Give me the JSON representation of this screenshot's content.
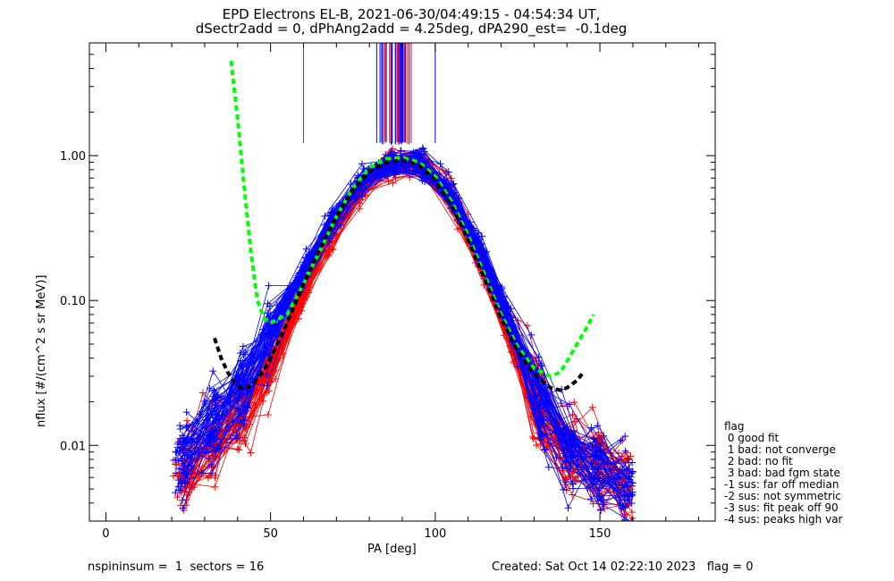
{
  "chart_data": {
    "type": "line",
    "title_line1": "EPD Electrons EL-B, 2021-06-30/04:49:15 - 04:54:34 UT,",
    "title_line2": "dSectr2add = 0, dPhAng2add = 4.25deg, dPA290_est=  -0.1deg",
    "xlabel": "PA [deg]",
    "ylabel": "nflux [#/(cm^2 s sr MeV)]",
    "xlim": [
      -5,
      185
    ],
    "ylim": [
      0.003,
      6
    ],
    "yscale": "log",
    "x_ticks": [
      0,
      50,
      100,
      150
    ],
    "x_tick_labels": [
      "0",
      "50",
      "100",
      "150"
    ],
    "y_ticks": [
      0.01,
      0.1,
      1.0
    ],
    "y_tick_labels": [
      "0.01",
      "0.10",
      "1.00"
    ],
    "series": [
      {
        "color": "#ff0000",
        "style": "line+cross",
        "profile_x": [
          22,
          30,
          35,
          40,
          45,
          50,
          55,
          60,
          65,
          70,
          75,
          80,
          85,
          90,
          95,
          100,
          105,
          110,
          115,
          120,
          125,
          130,
          135,
          140,
          145,
          150,
          155,
          160
        ],
        "profile_y": [
          0.006,
          0.009,
          0.011,
          0.014,
          0.02,
          0.035,
          0.06,
          0.11,
          0.2,
          0.33,
          0.5,
          0.7,
          0.85,
          0.92,
          0.88,
          0.72,
          0.5,
          0.3,
          0.16,
          0.08,
          0.04,
          0.02,
          0.012,
          0.009,
          0.008,
          0.007,
          0.006,
          0.005
        ]
      },
      {
        "color": "#0000ff",
        "style": "line+cross",
        "profile_x": [
          22,
          30,
          35,
          40,
          45,
          50,
          55,
          60,
          65,
          70,
          75,
          80,
          85,
          90,
          95,
          100,
          105,
          110,
          115,
          120,
          125,
          130,
          135,
          140,
          145,
          150,
          155,
          160
        ],
        "profile_y": [
          0.008,
          0.012,
          0.016,
          0.022,
          0.035,
          0.06,
          0.1,
          0.16,
          0.26,
          0.4,
          0.58,
          0.76,
          0.87,
          0.93,
          0.88,
          0.74,
          0.54,
          0.34,
          0.19,
          0.1,
          0.05,
          0.025,
          0.015,
          0.01,
          0.008,
          0.007,
          0.006,
          0.005
        ]
      },
      {
        "color": "#00ff00",
        "style": "dashed-fit",
        "x": [
          38,
          40,
          42,
          44,
          46,
          48,
          50,
          55,
          60,
          65,
          70,
          75,
          80,
          85,
          90,
          95,
          100,
          105,
          110,
          115,
          120,
          125,
          130,
          135,
          138,
          140,
          143,
          146,
          148
        ],
        "y": [
          4.5,
          1.8,
          0.6,
          0.22,
          0.1,
          0.075,
          0.07,
          0.08,
          0.13,
          0.22,
          0.38,
          0.6,
          0.82,
          0.95,
          0.97,
          0.9,
          0.72,
          0.48,
          0.28,
          0.15,
          0.08,
          0.048,
          0.034,
          0.03,
          0.032,
          0.038,
          0.05,
          0.065,
          0.08
        ]
      },
      {
        "color": "#000000",
        "style": "dashed-fit",
        "x": [
          33,
          35,
          37,
          39,
          41,
          43,
          45,
          48,
          50,
          55,
          60,
          65,
          70,
          75,
          80,
          85,
          90,
          95,
          100,
          105,
          110,
          115,
          120,
          125,
          130,
          135,
          138,
          140,
          143,
          145
        ],
        "y": [
          0.055,
          0.04,
          0.032,
          0.027,
          0.025,
          0.025,
          0.027,
          0.033,
          0.04,
          0.07,
          0.13,
          0.23,
          0.38,
          0.58,
          0.78,
          0.9,
          0.93,
          0.86,
          0.68,
          0.45,
          0.26,
          0.14,
          0.075,
          0.045,
          0.031,
          0.025,
          0.024,
          0.025,
          0.028,
          0.032
        ]
      }
    ],
    "pa_marker_lines": {
      "colors": [
        "#ff0000",
        "#0000ff"
      ],
      "x_range": [
        82,
        93
      ],
      "outliers_x": [
        60,
        100
      ]
    }
  },
  "legend": {
    "title": "flag",
    "items": [
      " 0 good fit",
      " 1 bad: not converge",
      " 2 bad: no fit",
      " 3 bad: bad fgm state",
      "-1 sus: far off median",
      "-2 sus: not symmetric",
      "-3 sus: fit peak off 90",
      "-4 sus: peaks high var"
    ]
  },
  "footer": {
    "left": "nspininsum =  1  sectors = 16",
    "right": "Created: Sat Oct 14 02:22:10 2023   flag = 0"
  }
}
